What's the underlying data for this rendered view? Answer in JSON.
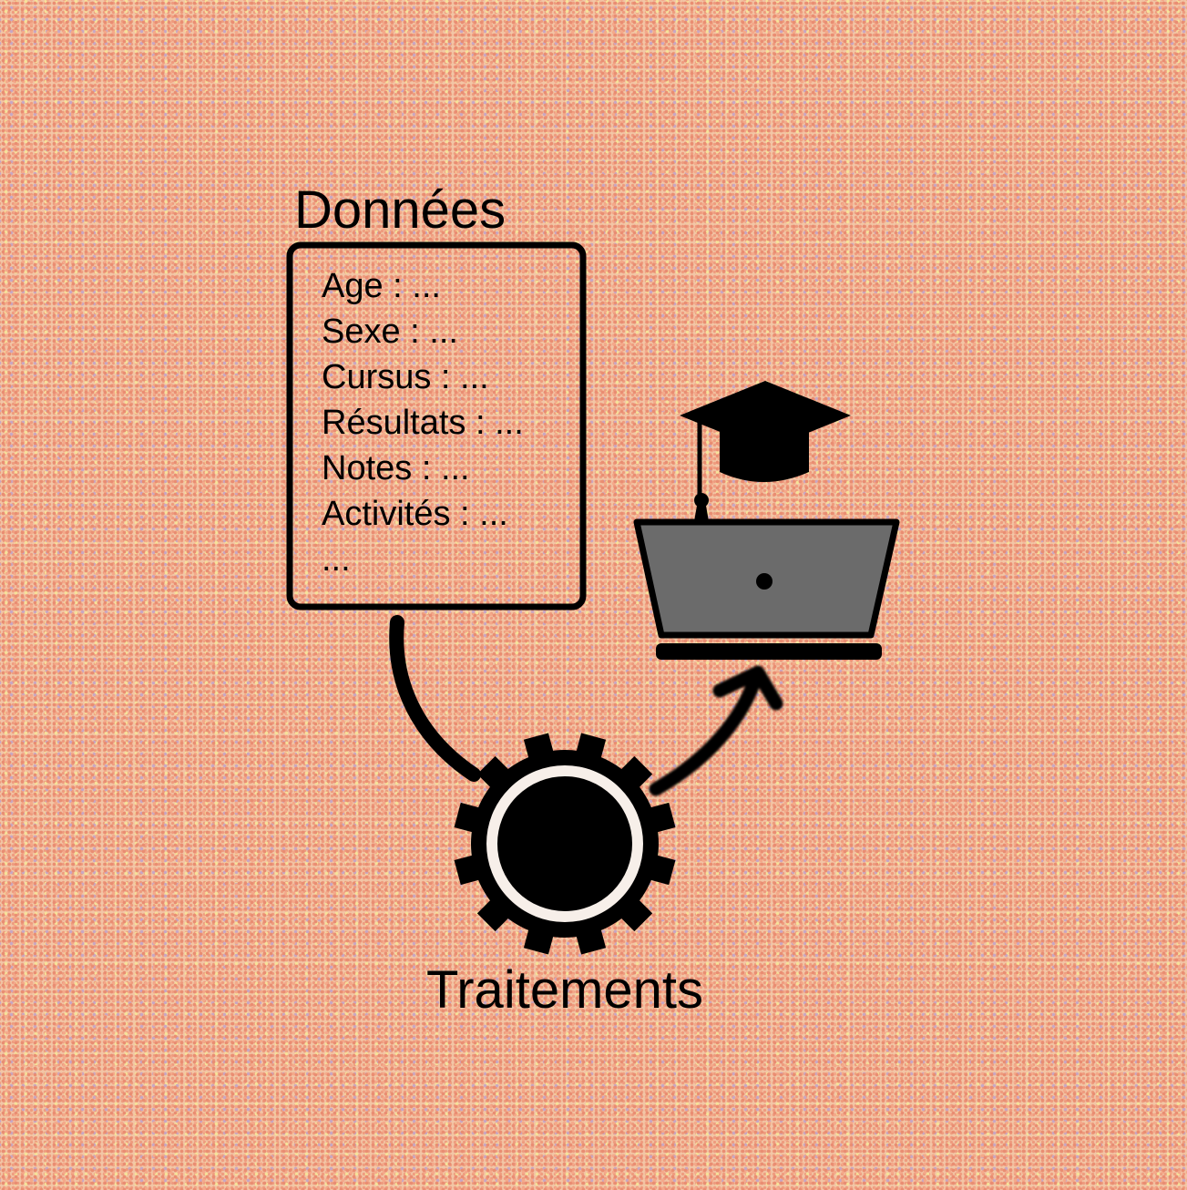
{
  "data_box": {
    "title": "Données",
    "fields": [
      "Age : ...",
      "Sexe : ...",
      "Cursus : ...",
      "Résultats : ...",
      "Notes : ...",
      "Activités : ...",
      "..."
    ]
  },
  "processing": {
    "label": "Traitements",
    "icon": "gear-icon"
  },
  "output": {
    "icons": [
      "graduation-cap-icon",
      "laptop-icon"
    ],
    "laptop_screen_color": "#6b6b6b"
  },
  "colors": {
    "stroke": "#000000",
    "background_dots": [
      "#e98d72",
      "#f4a98a",
      "#c7a7c4",
      "#f6e39a"
    ]
  }
}
